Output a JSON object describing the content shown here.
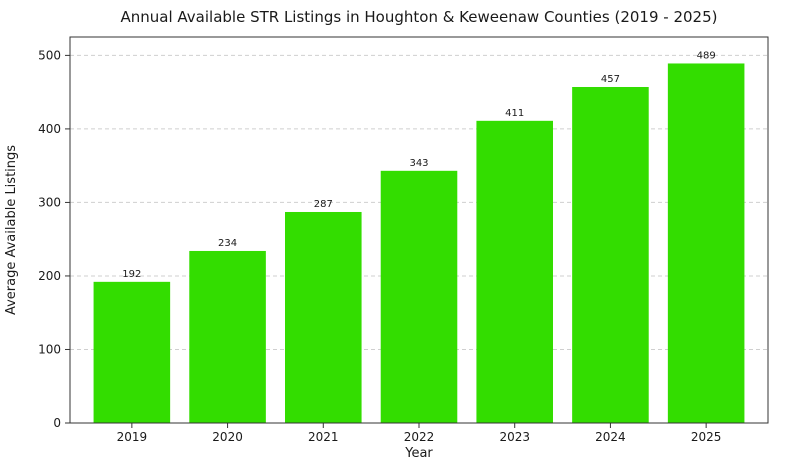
{
  "chart_data": {
    "type": "bar",
    "title": "Annual Available STR Listings in Houghton & Keweenaw Counties (2019 - 2025)",
    "xlabel": "Year",
    "ylabel": "Average Available Listings",
    "categories": [
      "2019",
      "2020",
      "2021",
      "2022",
      "2023",
      "2024",
      "2025"
    ],
    "values": [
      192,
      234,
      287,
      343,
      411,
      457,
      489
    ],
    "data_labels": [
      "192",
      "234",
      "287",
      "343",
      "411",
      "457",
      "489"
    ],
    "ylim": [
      0,
      525
    ],
    "yticks": [
      0,
      100,
      200,
      300,
      400,
      500
    ],
    "ytick_labels": [
      "0",
      "100",
      "200",
      "300",
      "400",
      "500"
    ],
    "grid": true,
    "bar_color": "#33dd00"
  }
}
